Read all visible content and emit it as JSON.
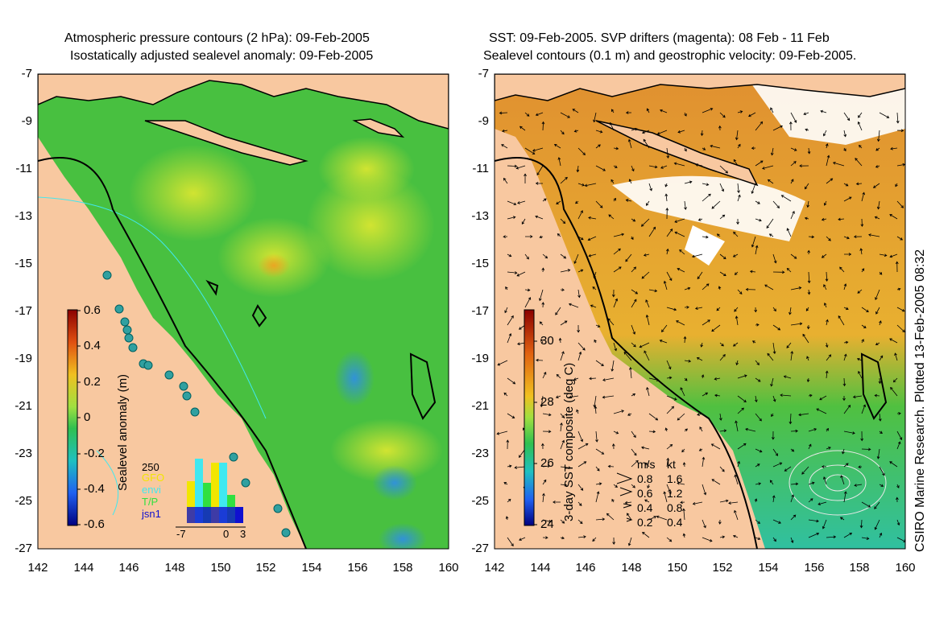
{
  "left_panel": {
    "title_line1": "Atmospheric pressure contours (2 hPa): 09-Feb-2005",
    "title_line2": "Isostatically adjusted sealevel anomaly: 09-Feb-2005",
    "colorbar_label": "Sealevel anomaly (m)",
    "colorbar_ticks": [
      "0.6",
      "0.4",
      "0.2",
      "0",
      "-0.2",
      "-0.4",
      "-0.6"
    ],
    "inset": {
      "top_value": "250",
      "legend": [
        {
          "label": "GFO",
          "color": "#f2e600"
        },
        {
          "label": "envi",
          "color": "#40e8f0"
        },
        {
          "label": "T/P",
          "color": "#30e040"
        },
        {
          "label": "jsn1",
          "color": "#1010d0"
        }
      ],
      "x_ticks": [
        "-7",
        "0",
        "3"
      ]
    }
  },
  "right_panel": {
    "title_line1": "SST: 09-Feb-2005. SVP drifters (magenta): 08 Feb - 11 Feb",
    "title_line2": "Sealevel contours (0.1 m) and geostrophic velocity: 09-Feb-2005.",
    "colorbar_label": "3-day SST composite (deg C)",
    "colorbar_ticks": [
      "30",
      "28",
      "26",
      "24"
    ],
    "velocity_legend": {
      "header_ms": "m/s",
      "header_kt": "kt",
      "rows": [
        {
          "ms": "0.8",
          "kt": "1.6"
        },
        {
          "ms": "0.6",
          "kt": "1.2"
        },
        {
          "ms": "0.4",
          "kt": "0.8"
        },
        {
          "ms": "0.2",
          "kt": "0.4"
        }
      ]
    }
  },
  "y_ticks": [
    "-7",
    "-9",
    "-11",
    "-13",
    "-15",
    "-17",
    "-19",
    "-21",
    "-23",
    "-25",
    "-27"
  ],
  "x_ticks": [
    "142",
    "144",
    "146",
    "148",
    "150",
    "152",
    "154",
    "156",
    "158",
    "160"
  ],
  "credit": "CSIRO Marine Research. Plotted 13-Feb-2005 08:32",
  "map_extent": {
    "lon": [
      142,
      160
    ],
    "lat": [
      -27,
      -7
    ]
  },
  "colors": {
    "land": "#f8c8a0",
    "ocean_green": "#40c040",
    "coast": "#000000"
  }
}
